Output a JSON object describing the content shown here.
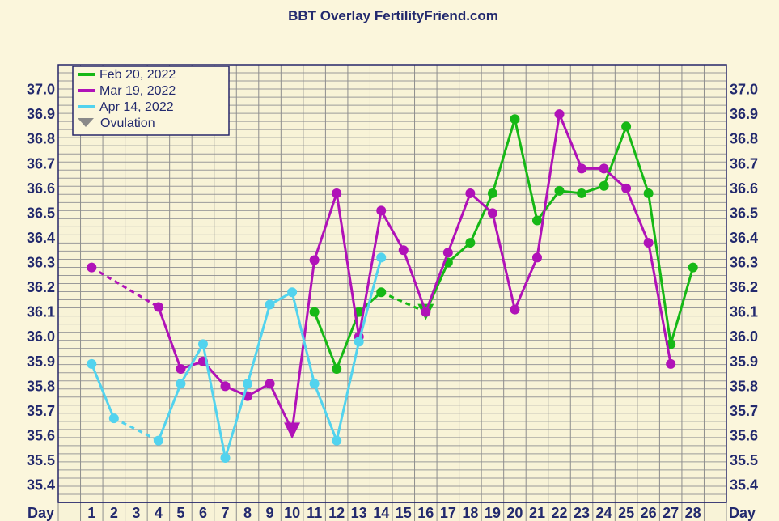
{
  "chart_data": {
    "type": "line",
    "title": "BBT Overlay FertilityFriend.com",
    "x_label": "Day",
    "days": [
      1,
      2,
      3,
      4,
      5,
      6,
      7,
      8,
      9,
      10,
      11,
      12,
      13,
      14,
      15,
      16,
      17,
      18,
      19,
      20,
      21,
      22,
      23,
      24,
      25,
      26,
      27,
      28
    ],
    "day_labels": [
      "1",
      "2",
      "3",
      "4",
      "5",
      "6",
      "7",
      "8",
      "9",
      "10",
      "11",
      "12",
      "13",
      "14",
      "15",
      "16",
      "17",
      "18",
      "19",
      "20",
      "21",
      "22",
      "23",
      "24",
      "25",
      "26",
      "27",
      "28"
    ],
    "y_ticks": [
      35.4,
      35.5,
      35.6,
      35.7,
      35.8,
      35.9,
      36.0,
      36.1,
      36.2,
      36.3,
      36.4,
      36.5,
      36.6,
      36.7,
      36.8,
      36.9,
      37.0
    ],
    "y_tick_labels": [
      "35.4",
      "35.5",
      "35.6",
      "35.7",
      "35.8",
      "35.9",
      "36.0",
      "36.1",
      "36.2",
      "36.3",
      "36.4",
      "36.5",
      "36.6",
      "36.7",
      "36.8",
      "36.9",
      "37.0"
    ],
    "ylim": [
      35.33,
      37.1
    ],
    "grid": true,
    "legend": "top-left",
    "ovulation_label": "Ovulation",
    "series": [
      {
        "name": "Feb 20, 2022",
        "color": "#16b816",
        "points": [
          [
            11,
            36.1
          ],
          [
            12,
            35.87
          ],
          [
            13,
            36.1
          ],
          [
            14,
            36.18
          ],
          [
            16,
            36.1
          ],
          [
            17,
            36.3
          ],
          [
            18,
            36.38
          ],
          [
            19,
            36.58
          ],
          [
            20,
            36.88
          ],
          [
            21,
            36.47
          ],
          [
            22,
            36.59
          ],
          [
            23,
            36.58
          ],
          [
            24,
            36.61
          ],
          [
            25,
            36.85
          ],
          [
            26,
            36.58
          ],
          [
            27,
            35.97
          ],
          [
            28,
            36.28
          ]
        ],
        "dashed_segments": [
          [
            14,
            16
          ]
        ],
        "ovulation_day": 16,
        "ovulation_temp": 36.1
      },
      {
        "name": "Mar 19, 2022",
        "color": "#b012b8",
        "points": [
          [
            1,
            36.28
          ],
          [
            4,
            36.12
          ],
          [
            5,
            35.87
          ],
          [
            6,
            35.9
          ],
          [
            7,
            35.8
          ],
          [
            8,
            35.76
          ],
          [
            9,
            35.81
          ],
          [
            10,
            35.62
          ],
          [
            11,
            36.31
          ],
          [
            12,
            36.58
          ],
          [
            13,
            36.0
          ],
          [
            14,
            36.51
          ],
          [
            15,
            36.35
          ],
          [
            16,
            36.1
          ],
          [
            17,
            36.34
          ],
          [
            18,
            36.58
          ],
          [
            19,
            36.5
          ],
          [
            20,
            36.11
          ],
          [
            21,
            36.32
          ],
          [
            22,
            36.9
          ],
          [
            23,
            36.68
          ],
          [
            24,
            36.68
          ],
          [
            25,
            36.6
          ],
          [
            26,
            36.38
          ],
          [
            27,
            35.89
          ]
        ],
        "dashed_segments": [
          [
            1,
            4
          ]
        ],
        "ovulation_day": 10,
        "ovulation_temp": 35.62
      },
      {
        "name": "Apr 14, 2022",
        "color": "#52d3ee",
        "points": [
          [
            1,
            35.89
          ],
          [
            2,
            35.67
          ],
          [
            4,
            35.58
          ],
          [
            5,
            35.81
          ],
          [
            6,
            35.97
          ],
          [
            7,
            35.51
          ],
          [
            8,
            35.81
          ],
          [
            9,
            36.13
          ],
          [
            10,
            36.18
          ],
          [
            11,
            35.81
          ],
          [
            12,
            35.58
          ],
          [
            13,
            35.98
          ],
          [
            14,
            36.32
          ]
        ],
        "dashed_segments": [
          [
            2,
            4
          ]
        ]
      }
    ]
  }
}
